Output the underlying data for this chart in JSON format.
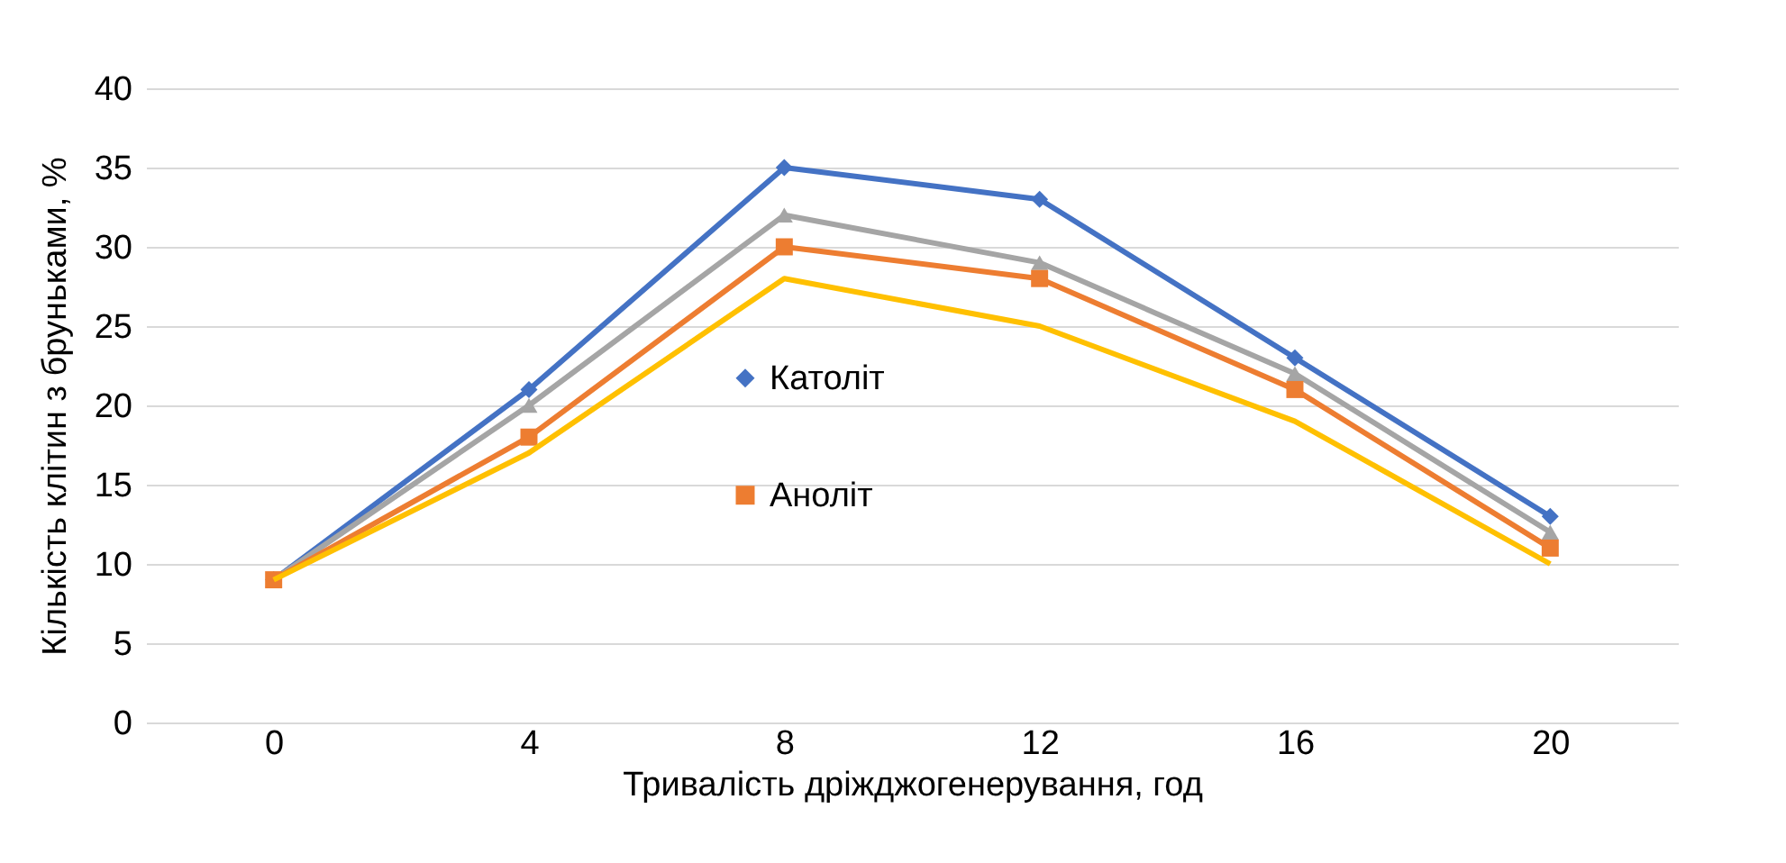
{
  "chart_data": {
    "type": "line",
    "xlabel": "Тривалість дріжджогенерування, год",
    "ylabel": "Кількість клітин з бруньками, %",
    "categories": [
      "0",
      "4",
      "8",
      "12",
      "16",
      "20"
    ],
    "series": [
      {
        "name": "Католіт",
        "color": "#4472c4",
        "marker": "diamond",
        "values": [
          9,
          21,
          35,
          33,
          23,
          13
        ]
      },
      {
        "color": "#a5a5a5",
        "marker": "triangle",
        "values": [
          9,
          20,
          32,
          29,
          22,
          12
        ]
      },
      {
        "name": "Аноліт",
        "color": "#ed7d31",
        "marker": "square",
        "values": [
          9,
          18,
          30,
          28,
          21,
          11
        ]
      },
      {
        "color": "#ffc000",
        "marker": "none",
        "values": [
          9,
          17,
          28,
          25,
          19,
          10
        ]
      }
    ],
    "ylim": [
      0,
      40
    ],
    "yticks": [
      0,
      5,
      10,
      15,
      20,
      25,
      30,
      35,
      40
    ],
    "grid": "y",
    "legend": "center"
  }
}
